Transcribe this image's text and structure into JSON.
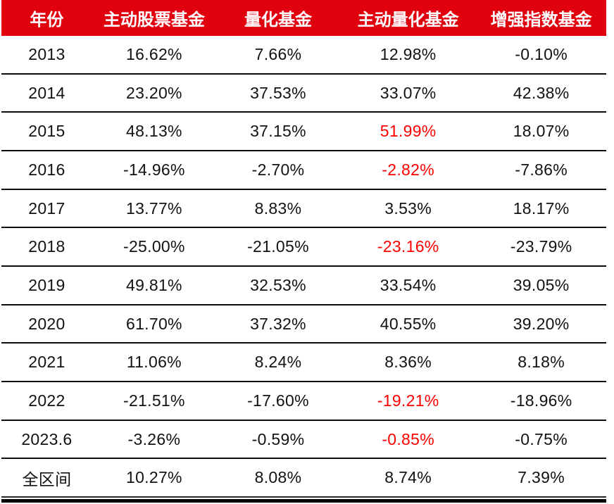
{
  "colors": {
    "header_bg": "#E1000E",
    "header_text": "#FFFFFF",
    "value_text": "#121212",
    "highlight_red": "#FF0000",
    "row_border": "#0B0B0B"
  },
  "chart_data": {
    "type": "table",
    "title": "",
    "columns": [
      "年份",
      "主动股票基金",
      "量化基金",
      "主动量化基金",
      "增强指数基金"
    ],
    "rows": [
      {
        "year": "2013",
        "values": [
          {
            "text": "16.62%",
            "red": false
          },
          {
            "text": "7.66%",
            "red": false
          },
          {
            "text": "12.98%",
            "red": false
          },
          {
            "text": "-0.10%",
            "red": false
          }
        ]
      },
      {
        "year": "2014",
        "values": [
          {
            "text": "23.20%",
            "red": false
          },
          {
            "text": "37.53%",
            "red": false
          },
          {
            "text": "33.07%",
            "red": false
          },
          {
            "text": "42.38%",
            "red": false
          }
        ]
      },
      {
        "year": "2015",
        "values": [
          {
            "text": "48.13%",
            "red": false
          },
          {
            "text": "37.15%",
            "red": false
          },
          {
            "text": "51.99%",
            "red": true
          },
          {
            "text": "18.07%",
            "red": false
          }
        ]
      },
      {
        "year": "2016",
        "values": [
          {
            "text": "-14.96%",
            "red": false
          },
          {
            "text": "-2.70%",
            "red": false
          },
          {
            "text": "-2.82%",
            "red": true
          },
          {
            "text": "-7.86%",
            "red": false
          }
        ]
      },
      {
        "year": "2017",
        "values": [
          {
            "text": "13.77%",
            "red": false
          },
          {
            "text": "8.83%",
            "red": false
          },
          {
            "text": "3.53%",
            "red": false
          },
          {
            "text": "18.17%",
            "red": false
          }
        ]
      },
      {
        "year": "2018",
        "values": [
          {
            "text": "-25.00%",
            "red": false
          },
          {
            "text": "-21.05%",
            "red": false
          },
          {
            "text": "-23.16%",
            "red": true
          },
          {
            "text": "-23.79%",
            "red": false
          }
        ]
      },
      {
        "year": "2019",
        "values": [
          {
            "text": "49.81%",
            "red": false
          },
          {
            "text": "32.53%",
            "red": false
          },
          {
            "text": "33.54%",
            "red": false
          },
          {
            "text": "39.05%",
            "red": false
          }
        ]
      },
      {
        "year": "2020",
        "values": [
          {
            "text": "61.70%",
            "red": false
          },
          {
            "text": "37.32%",
            "red": false
          },
          {
            "text": "40.55%",
            "red": false
          },
          {
            "text": "39.20%",
            "red": false
          }
        ]
      },
      {
        "year": "2021",
        "values": [
          {
            "text": "11.06%",
            "red": false
          },
          {
            "text": "8.24%",
            "red": false
          },
          {
            "text": "8.36%",
            "red": false
          },
          {
            "text": "8.18%",
            "red": false
          }
        ]
      },
      {
        "year": "2022",
        "values": [
          {
            "text": "-21.51%",
            "red": false
          },
          {
            "text": "-17.60%",
            "red": false
          },
          {
            "text": "-19.21%",
            "red": true
          },
          {
            "text": "-18.96%",
            "red": false
          }
        ]
      },
      {
        "year": "2023.6",
        "values": [
          {
            "text": "-3.26%",
            "red": false
          },
          {
            "text": "-0.59%",
            "red": false
          },
          {
            "text": "-0.85%",
            "red": true
          },
          {
            "text": "-0.75%",
            "red": false
          }
        ]
      },
      {
        "year": "全区间",
        "values": [
          {
            "text": "10.27%",
            "red": false
          },
          {
            "text": "8.08%",
            "red": false
          },
          {
            "text": "8.74%",
            "red": false
          },
          {
            "text": "7.39%",
            "red": false
          }
        ]
      }
    ]
  }
}
